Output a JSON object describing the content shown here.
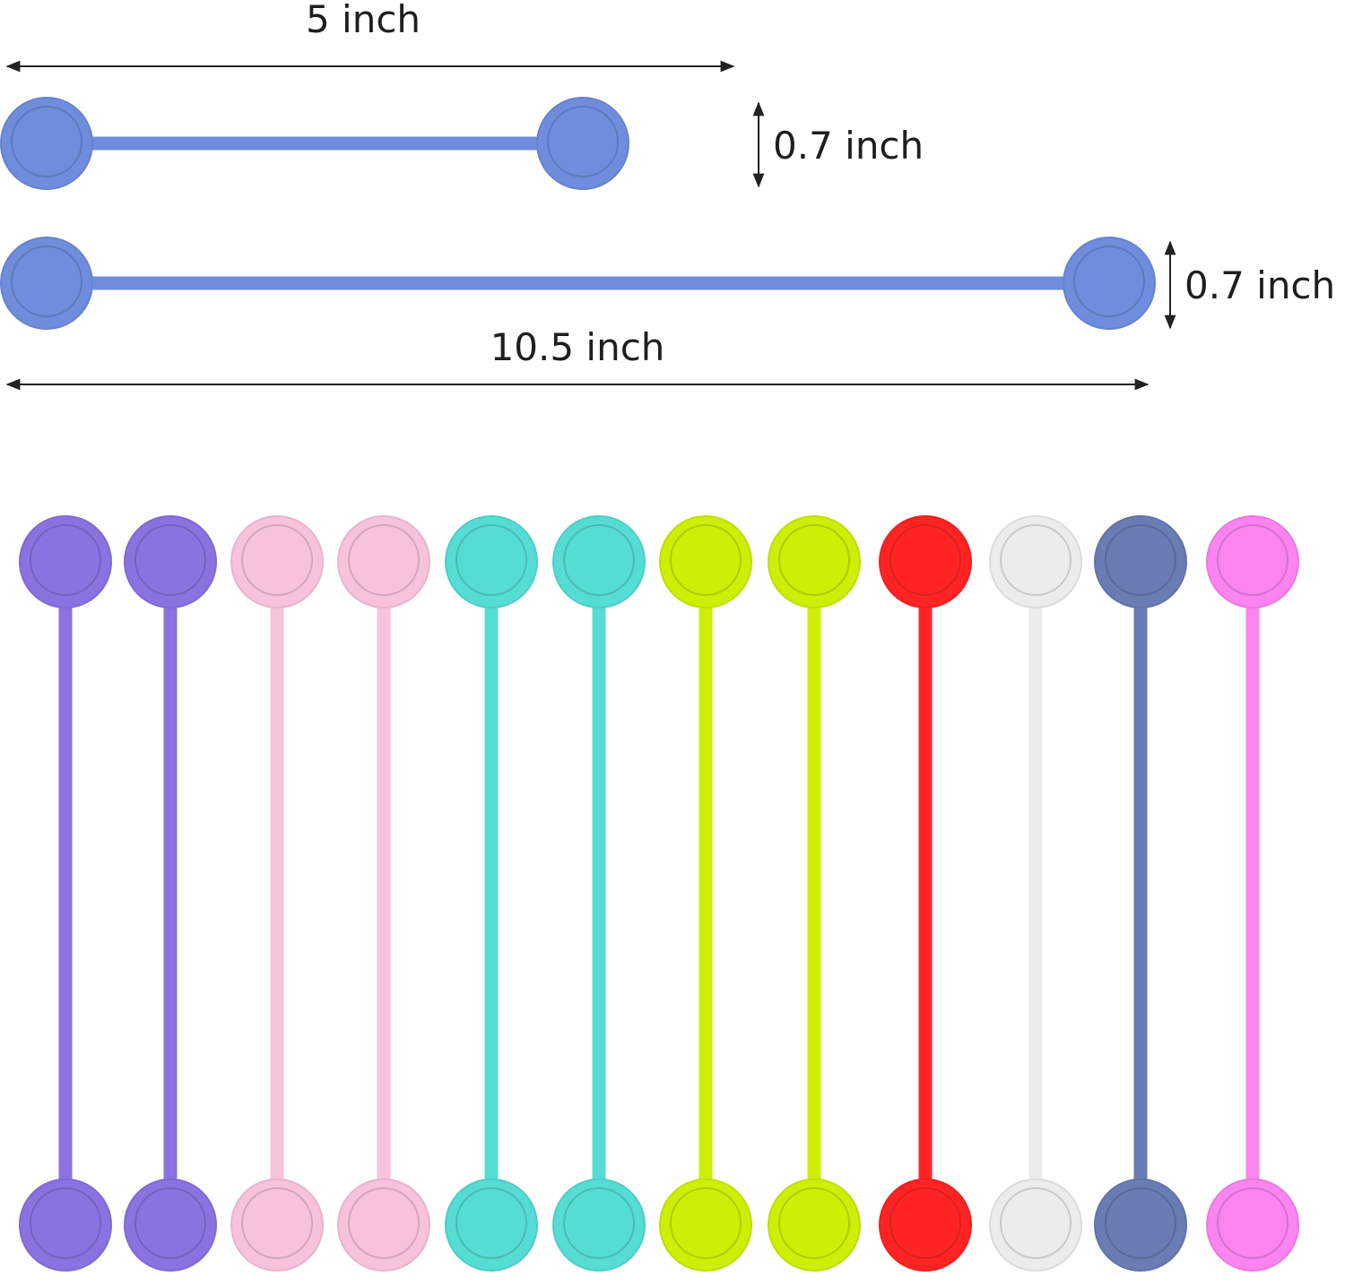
{
  "dimensions": {
    "short_length_label": "5 inch",
    "short_width_label": "0.7 inch",
    "long_width_label": "0.7 inch",
    "long_length_label": "10.5 inch"
  },
  "sample_tie_color": "#6f8ddc",
  "ties": [
    {
      "color": "#8a72e0",
      "name": "purple"
    },
    {
      "color": "#8a72e0",
      "name": "purple"
    },
    {
      "color": "#f8c2dc",
      "name": "pink"
    },
    {
      "color": "#f8c2dc",
      "name": "pink"
    },
    {
      "color": "#55dcd4",
      "name": "teal"
    },
    {
      "color": "#55dcd4",
      "name": "teal"
    },
    {
      "color": "#cdef06",
      "name": "lime"
    },
    {
      "color": "#cdef06",
      "name": "lime"
    },
    {
      "color": "#ff2424",
      "name": "red"
    },
    {
      "color": "#ececec",
      "name": "white"
    },
    {
      "color": "#6a7cb4",
      "name": "slate-blue"
    },
    {
      "color": "#fb84f0",
      "name": "magenta"
    }
  ]
}
